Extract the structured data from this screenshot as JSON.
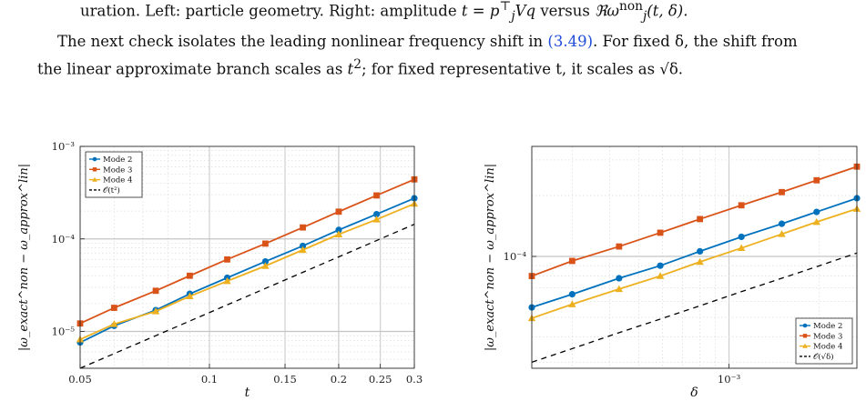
{
  "caption_tail": {
    "text_a": "uration. Left: particle geometry. Right: amplitude ",
    "amp_var": "t",
    "eq": " = ",
    "amp_expr": "p",
    "amp_sub": "j",
    "amp_sup": "⊤",
    "amp_rest": "Vq",
    "text_b": " versus ",
    "re_sym": "ℜω",
    "re_sub": "j",
    "re_sup": "non",
    "re_args": "(t, δ)."
  },
  "paragraph": {
    "line1_a": "The next check isolates the leading nonlinear frequency shift in ",
    "ref": "(3.49)",
    "line1_b": ". For fixed δ, the shift from",
    "line2_a": "the linear approximate branch scales as ",
    "line2_t": "t",
    "line2_sup": "2",
    "line2_b": "; for fixed representative t, it scales as √δ."
  },
  "colors": {
    "mode2": "#0072BD",
    "mode3": "#D95319",
    "mode4": "#EDB120",
    "ref": "#000000"
  },
  "chart_data": [
    {
      "type": "line",
      "xscale": "log",
      "yscale": "log",
      "xlabel": "t",
      "ylabel": "|ω_exact^non − ω_approx^lin|",
      "xlim": [
        0.05,
        0.3
      ],
      "ylim": [
        4e-06,
        0.001
      ],
      "xticks": [
        0.05,
        0.1,
        0.15,
        0.2,
        0.25,
        0.3
      ],
      "xtick_labels": [
        "0.05",
        "0.1",
        "0.15",
        "0.2",
        "0.25",
        "0.3"
      ],
      "yticks": [
        1e-05,
        0.0001,
        0.001
      ],
      "ytick_labels": [
        "10⁻⁵",
        "10⁻⁴",
        "10⁻³"
      ],
      "grid": true,
      "legend": "top-left",
      "x": [
        0.05,
        0.06,
        0.075,
        0.09,
        0.11,
        0.135,
        0.165,
        0.2,
        0.245,
        0.3
      ],
      "series": [
        {
          "name": "Mode 2",
          "marker": "circle",
          "values": [
            7.6e-06,
            1.15e-05,
            1.7e-05,
            2.55e-05,
            3.8e-05,
            5.7e-05,
            8.4e-05,
            0.000125,
            0.000185,
            0.000275
          ]
        },
        {
          "name": "Mode 3",
          "marker": "square",
          "values": [
            1.22e-05,
            1.8e-05,
            2.75e-05,
            4e-05,
            6e-05,
            8.9e-05,
            0.000133,
            0.000197,
            0.000295,
            0.00044
          ]
        },
        {
          "name": "Mode 4",
          "marker": "triangle",
          "values": [
            8.2e-06,
            1.2e-05,
            1.65e-05,
            2.4e-05,
            3.5e-05,
            5.1e-05,
            7.6e-05,
            0.000112,
            0.000162,
            0.00024
          ]
        },
        {
          "name": "𝒪(t²)",
          "dashed": true,
          "values": [
            4e-06,
            5.76e-06,
            9e-06,
            1.296e-05,
            1.936e-05,
            2.916e-05,
            4.356e-05,
            6.4e-05,
            9.6e-05,
            0.000144
          ]
        }
      ]
    },
    {
      "type": "line",
      "xscale": "log",
      "yscale": "log",
      "xlabel": "δ",
      "ylabel": "|ω_exact^non − ω_approx^lin|",
      "xlim": [
        0.00022,
        0.00267
      ],
      "ylim": [
        2.8e-05,
        0.00035
      ],
      "xticks": [
        0.001
      ],
      "xtick_labels": [
        "10⁻³"
      ],
      "yticks": [
        0.0001
      ],
      "ytick_labels": [
        "10⁻⁴"
      ],
      "grid": true,
      "legend": "bottom-right",
      "x": [
        0.00022,
        0.0003,
        0.00043,
        0.00059,
        0.0008,
        0.0011,
        0.0015,
        0.00196,
        0.00267
      ],
      "series": [
        {
          "name": "Mode 2",
          "marker": "circle",
          "values": [
            5.6e-05,
            6.5e-05,
            7.8e-05,
            9e-05,
            0.000106,
            0.000125,
            0.000145,
            0.000166,
            0.000194
          ]
        },
        {
          "name": "Mode 3",
          "marker": "square",
          "values": [
            8e-05,
            9.5e-05,
            0.000112,
            0.000131,
            0.000153,
            0.000179,
            0.000208,
            0.000238,
            0.000278
          ]
        },
        {
          "name": "Mode 4",
          "marker": "triangle",
          "values": [
            4.95e-05,
            5.8e-05,
            6.9e-05,
            8e-05,
            9.4e-05,
            0.00011,
            0.000129,
            0.000148,
            0.000172
          ]
        },
        {
          "name": "𝒪(√δ)",
          "dashed": true,
          "values": [
            3e-05,
            3.5e-05,
            4.2e-05,
            4.9e-05,
            5.7e-05,
            6.7e-05,
            7.8e-05,
            8.9e-05,
            0.000104
          ]
        }
      ]
    }
  ]
}
